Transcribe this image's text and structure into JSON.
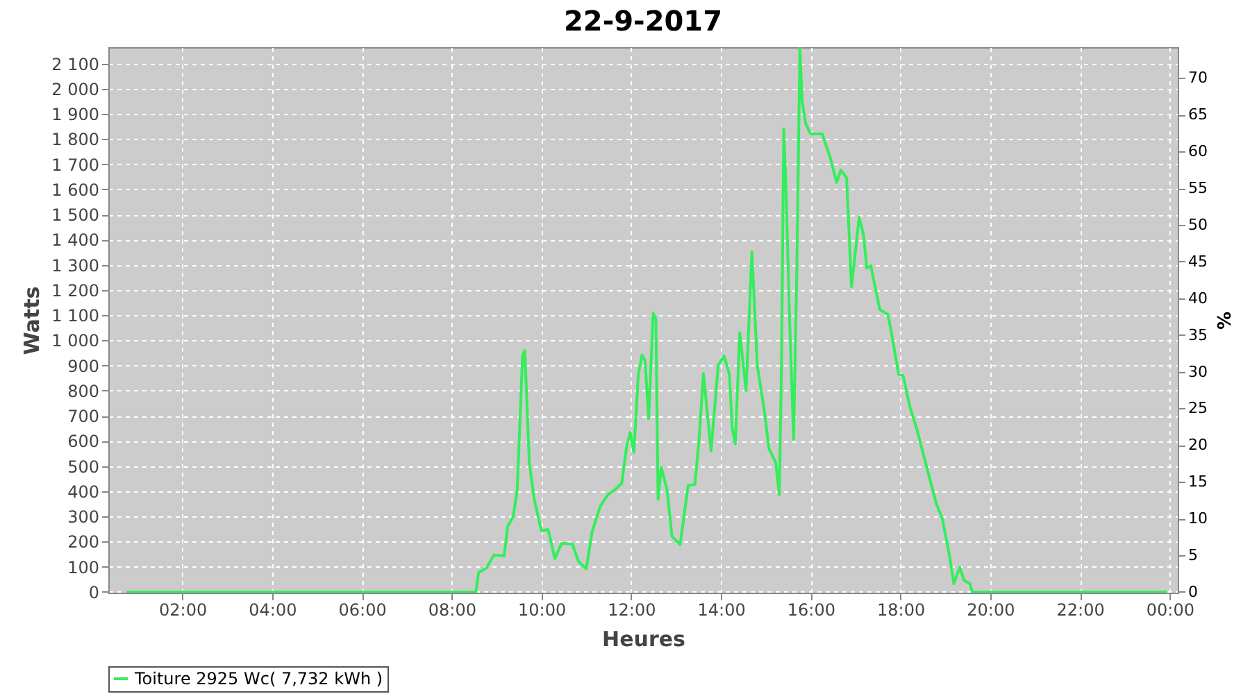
{
  "chart_data": {
    "type": "line",
    "title": "22-9-2017",
    "xlabel": "Heures",
    "ylabel": "Watts",
    "y2label": "%",
    "xlim": [
      0.35,
      24.18
    ],
    "xticks": [
      {
        "value": 2,
        "label": "02:00"
      },
      {
        "value": 4,
        "label": "04:00"
      },
      {
        "value": 6,
        "label": "06:00"
      },
      {
        "value": 8,
        "label": "08:00"
      },
      {
        "value": 10,
        "label": "10:00"
      },
      {
        "value": 12,
        "label": "12:00"
      },
      {
        "value": 14,
        "label": "14:00"
      },
      {
        "value": 16,
        "label": "16:00"
      },
      {
        "value": 18,
        "label": "18:00"
      },
      {
        "value": 20,
        "label": "20:00"
      },
      {
        "value": 22,
        "label": "22:00"
      },
      {
        "value": 24,
        "label": "00:00"
      }
    ],
    "ylim": [
      -3,
      2165
    ],
    "yticks": [
      0,
      100,
      200,
      300,
      400,
      500,
      600,
      700,
      800,
      900,
      {
        "value": 1000,
        "label": "1 000"
      },
      {
        "value": 1100,
        "label": "1 100"
      },
      {
        "value": 1200,
        "label": "1 200"
      },
      {
        "value": 1300,
        "label": "1 300"
      },
      {
        "value": 1400,
        "label": "1 400"
      },
      {
        "value": 1500,
        "label": "1 500"
      },
      {
        "value": 1600,
        "label": "1 600"
      },
      {
        "value": 1700,
        "label": "1 700"
      },
      {
        "value": 1800,
        "label": "1 800"
      },
      {
        "value": 1900,
        "label": "1 900"
      },
      {
        "value": 2000,
        "label": "2 000"
      },
      {
        "value": 2100,
        "label": "2 100"
      }
    ],
    "y2lim": [
      -0.1,
      74.2
    ],
    "y2ticks": [
      0,
      5,
      10,
      15,
      20,
      25,
      30,
      35,
      40,
      45,
      50,
      55,
      60,
      65,
      70
    ],
    "grid": true,
    "legend": "bottom",
    "marker": "none",
    "line_style": "solid",
    "series": [
      {
        "name": "Toiture 2925 Wc( 7,732 kWh )",
        "color": "#33ee5a",
        "x": [
          0.75,
          8.54,
          8.6,
          8.78,
          8.94,
          9.17,
          9.25,
          9.37,
          9.46,
          9.51,
          9.58,
          9.63,
          9.73,
          9.84,
          10.0,
          10.15,
          10.3,
          10.45,
          10.69,
          10.83,
          11.0,
          11.13,
          11.31,
          11.48,
          11.65,
          11.79,
          11.9,
          11.98,
          12.06,
          12.16,
          12.24,
          12.31,
          12.39,
          12.49,
          12.55,
          12.6,
          12.67,
          12.8,
          12.91,
          13.09,
          13.27,
          13.42,
          13.51,
          13.61,
          13.78,
          13.94,
          14.07,
          14.19,
          14.25,
          14.32,
          14.42,
          14.56,
          14.69,
          14.81,
          14.97,
          15.07,
          15.22,
          15.3,
          15.35,
          15.4,
          15.45,
          15.53,
          15.62,
          15.69,
          15.76,
          15.81,
          15.89,
          16.0,
          16.26,
          16.43,
          16.58,
          16.67,
          16.8,
          16.91,
          17.08,
          17.18,
          17.25,
          17.34,
          17.54,
          17.72,
          17.8,
          17.96,
          18.06,
          18.21,
          18.37,
          18.49,
          18.8,
          18.93,
          19.09,
          19.19,
          19.32,
          19.42,
          19.55,
          19.6,
          23.95
        ],
        "values": [
          0,
          0,
          77,
          96,
          147,
          143,
          261,
          298,
          405,
          625,
          938,
          960,
          515,
          368,
          243,
          248,
          132,
          193,
          190,
          120,
          92,
          239,
          340,
          386,
          408,
          432,
          579,
          634,
          555,
          864,
          941,
          919,
          689,
          1107,
          1085,
          368,
          496,
          405,
          221,
          188,
          423,
          427,
          598,
          868,
          561,
          901,
          938,
          864,
          653,
          589,
          1030,
          800,
          1351,
          901,
          717,
          570,
          515,
          386,
          901,
          1839,
          1600,
          1085,
          607,
          1269,
          2160,
          1949,
          1861,
          1820,
          1820,
          1729,
          1627,
          1677,
          1646,
          1213,
          1489,
          1416,
          1287,
          1296,
          1122,
          1103,
          1030,
          864,
          860,
          736,
          644,
          561,
          350,
          294,
          147,
          33,
          98,
          46,
          33,
          0,
          0
        ]
      }
    ]
  }
}
